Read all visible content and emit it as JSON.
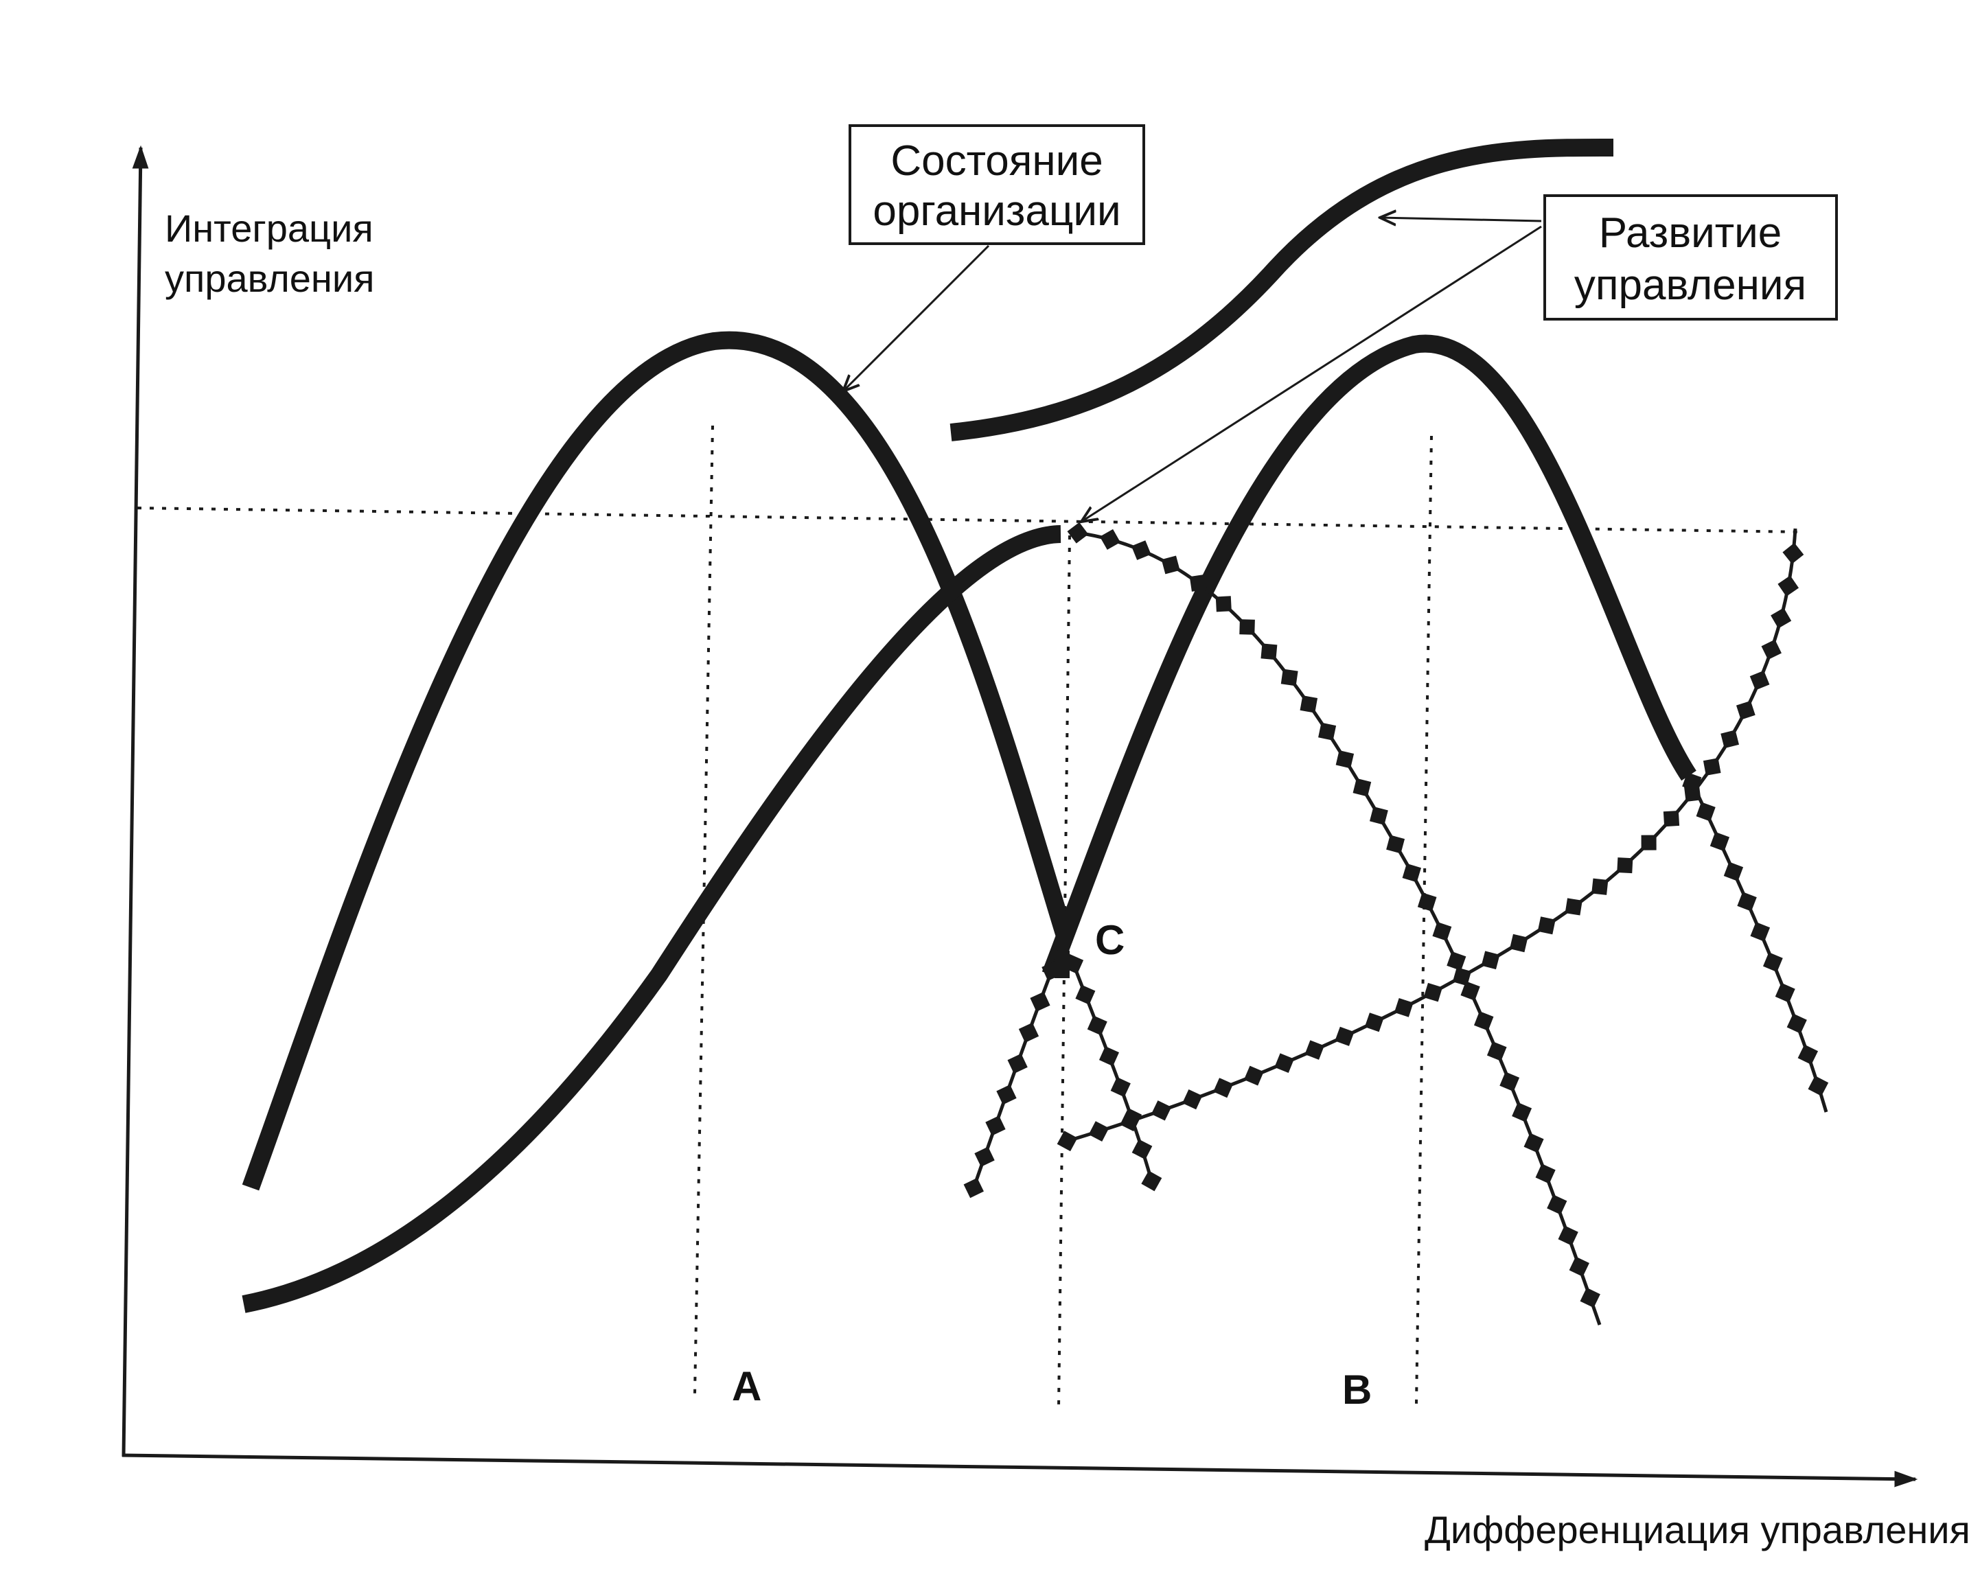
{
  "axes": {
    "y_label_line1": "Интеграция",
    "y_label_line2": "управления",
    "x_label": "Дифференциация управления"
  },
  "callouts": {
    "state": {
      "line1": "Состояние",
      "line2": "организации"
    },
    "development": {
      "line1": "Развитие",
      "line2": "управления"
    }
  },
  "points": {
    "a": "А",
    "b": "В",
    "c": "С"
  },
  "colors": {
    "ink": "#1a1a1a",
    "background": "#ffffff"
  }
}
